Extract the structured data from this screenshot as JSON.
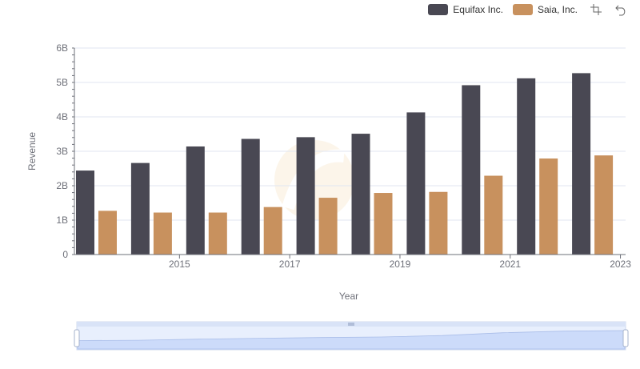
{
  "legend": {
    "items": [
      {
        "name": "Equifax Inc.",
        "color": "#494853"
      },
      {
        "name": "Saia, Inc.",
        "color": "#c8915e"
      }
    ],
    "tools": [
      "zoom-select-icon",
      "zoom-reset-icon"
    ]
  },
  "chart_data": {
    "type": "bar",
    "categories": [
      "2014",
      "2015",
      "2016",
      "2017",
      "2018",
      "2019",
      "2020",
      "2021",
      "2022",
      "2023"
    ],
    "x_tick_labels": [
      "2015",
      "2017",
      "2019",
      "2021",
      "2023"
    ],
    "series": [
      {
        "name": "Equifax Inc.",
        "color": "#494853",
        "values": [
          2.44,
          2.66,
          3.14,
          3.36,
          3.41,
          3.51,
          4.13,
          4.92,
          5.12,
          5.27
        ]
      },
      {
        "name": "Saia, Inc.",
        "color": "#c8915e",
        "values": [
          1.27,
          1.22,
          1.22,
          1.38,
          1.65,
          1.79,
          1.82,
          2.29,
          2.79,
          2.88
        ]
      }
    ],
    "ylabel": "Revenue",
    "xlabel": "Year",
    "ylim": [
      0,
      6
    ],
    "y_ticks": [
      0,
      1,
      2,
      3,
      4,
      5,
      6
    ],
    "y_tick_labels": [
      "0",
      "1B",
      "2B",
      "3B",
      "4B",
      "5B",
      "6B"
    ],
    "grid": true,
    "legend_position": "top-right",
    "datazoom": {
      "start": 0,
      "end": 100
    }
  }
}
